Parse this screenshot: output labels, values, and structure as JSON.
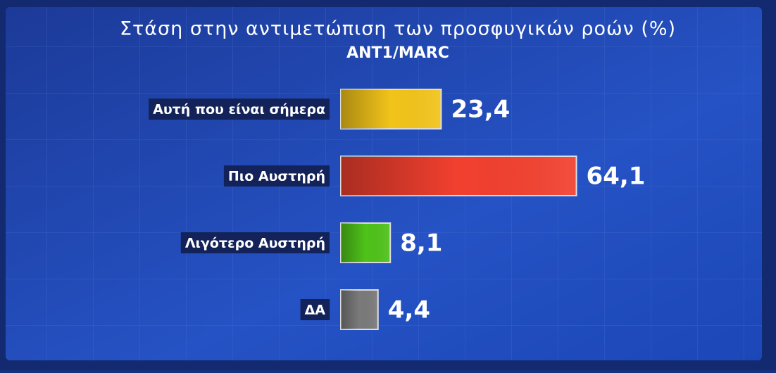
{
  "chart_data": {
    "type": "barh",
    "title": "Στάση στην αντιμετώπιση των προσφυγικών ροών (%)",
    "subtitle": "ANT1/MARC",
    "categories": [
      "Αυτή που είναι σήμερα",
      "Πιο Αυστηρή",
      "Λιγότερο Αυστηρή",
      "ΔΑ"
    ],
    "values": [
      23.4,
      64.1,
      8.1,
      4.4
    ],
    "value_labels": [
      "23,4",
      "64,1",
      "8,1",
      "4,4"
    ],
    "colors": [
      "#f2c41a",
      "#f2402f",
      "#4fc21a",
      "#7a7a7a"
    ]
  }
}
